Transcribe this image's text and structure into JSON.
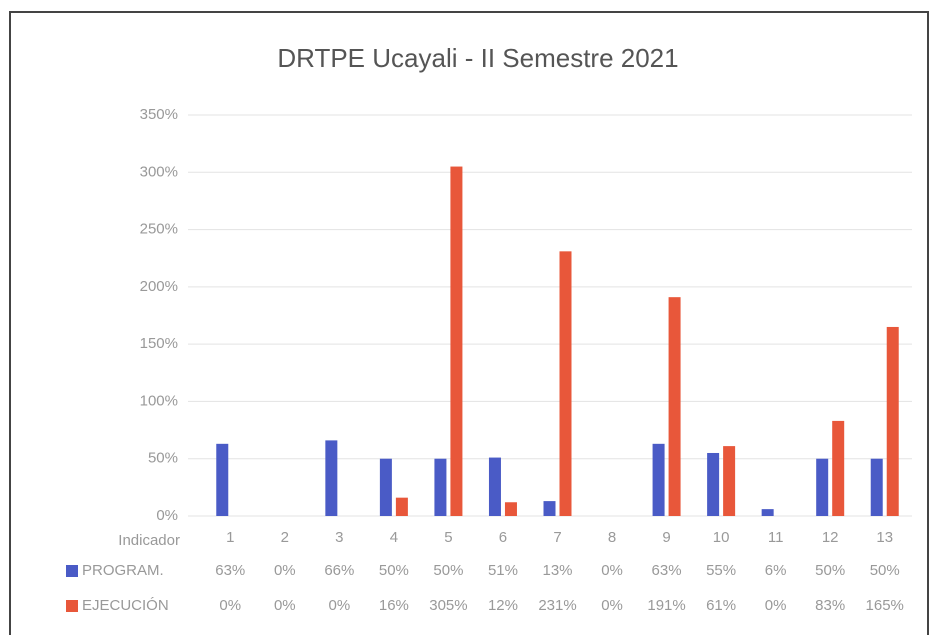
{
  "chart_data": {
    "type": "bar",
    "title": "DRTPE Ucayali - II Semestre 2021",
    "x_label": "Indicador",
    "categories": [
      "1",
      "2",
      "3",
      "4",
      "5",
      "6",
      "7",
      "8",
      "9",
      "10",
      "11",
      "12",
      "13"
    ],
    "series": [
      {
        "name": "PROGRAM.",
        "color": "#4a5bc6",
        "values": [
          63,
          0,
          66,
          50,
          50,
          51,
          13,
          0,
          63,
          55,
          6,
          50,
          50
        ],
        "value_labels": [
          "63%",
          "0%",
          "66%",
          "50%",
          "50%",
          "51%",
          "13%",
          "0%",
          "63%",
          "55%",
          "6%",
          "50%",
          "50%"
        ]
      },
      {
        "name": "EJECUCIÓN",
        "color": "#e8573a",
        "values": [
          0,
          0,
          0,
          16,
          305,
          12,
          231,
          0,
          191,
          61,
          0,
          83,
          165
        ],
        "value_labels": [
          "0%",
          "0%",
          "0%",
          "16%",
          "305%",
          "12%",
          "231%",
          "0%",
          "191%",
          "61%",
          "0%",
          "83%",
          "165%"
        ]
      }
    ],
    "ylim": [
      0,
      350
    ],
    "yticks": [
      {
        "value": 0,
        "label": "0%"
      },
      {
        "value": 50,
        "label": "50%"
      },
      {
        "value": 100,
        "label": "100%"
      },
      {
        "value": 150,
        "label": "150%"
      },
      {
        "value": 200,
        "label": "200%"
      },
      {
        "value": 250,
        "label": "250%"
      },
      {
        "value": 300,
        "label": "300%"
      },
      {
        "value": 350,
        "label": "350%"
      }
    ],
    "grid": true
  }
}
